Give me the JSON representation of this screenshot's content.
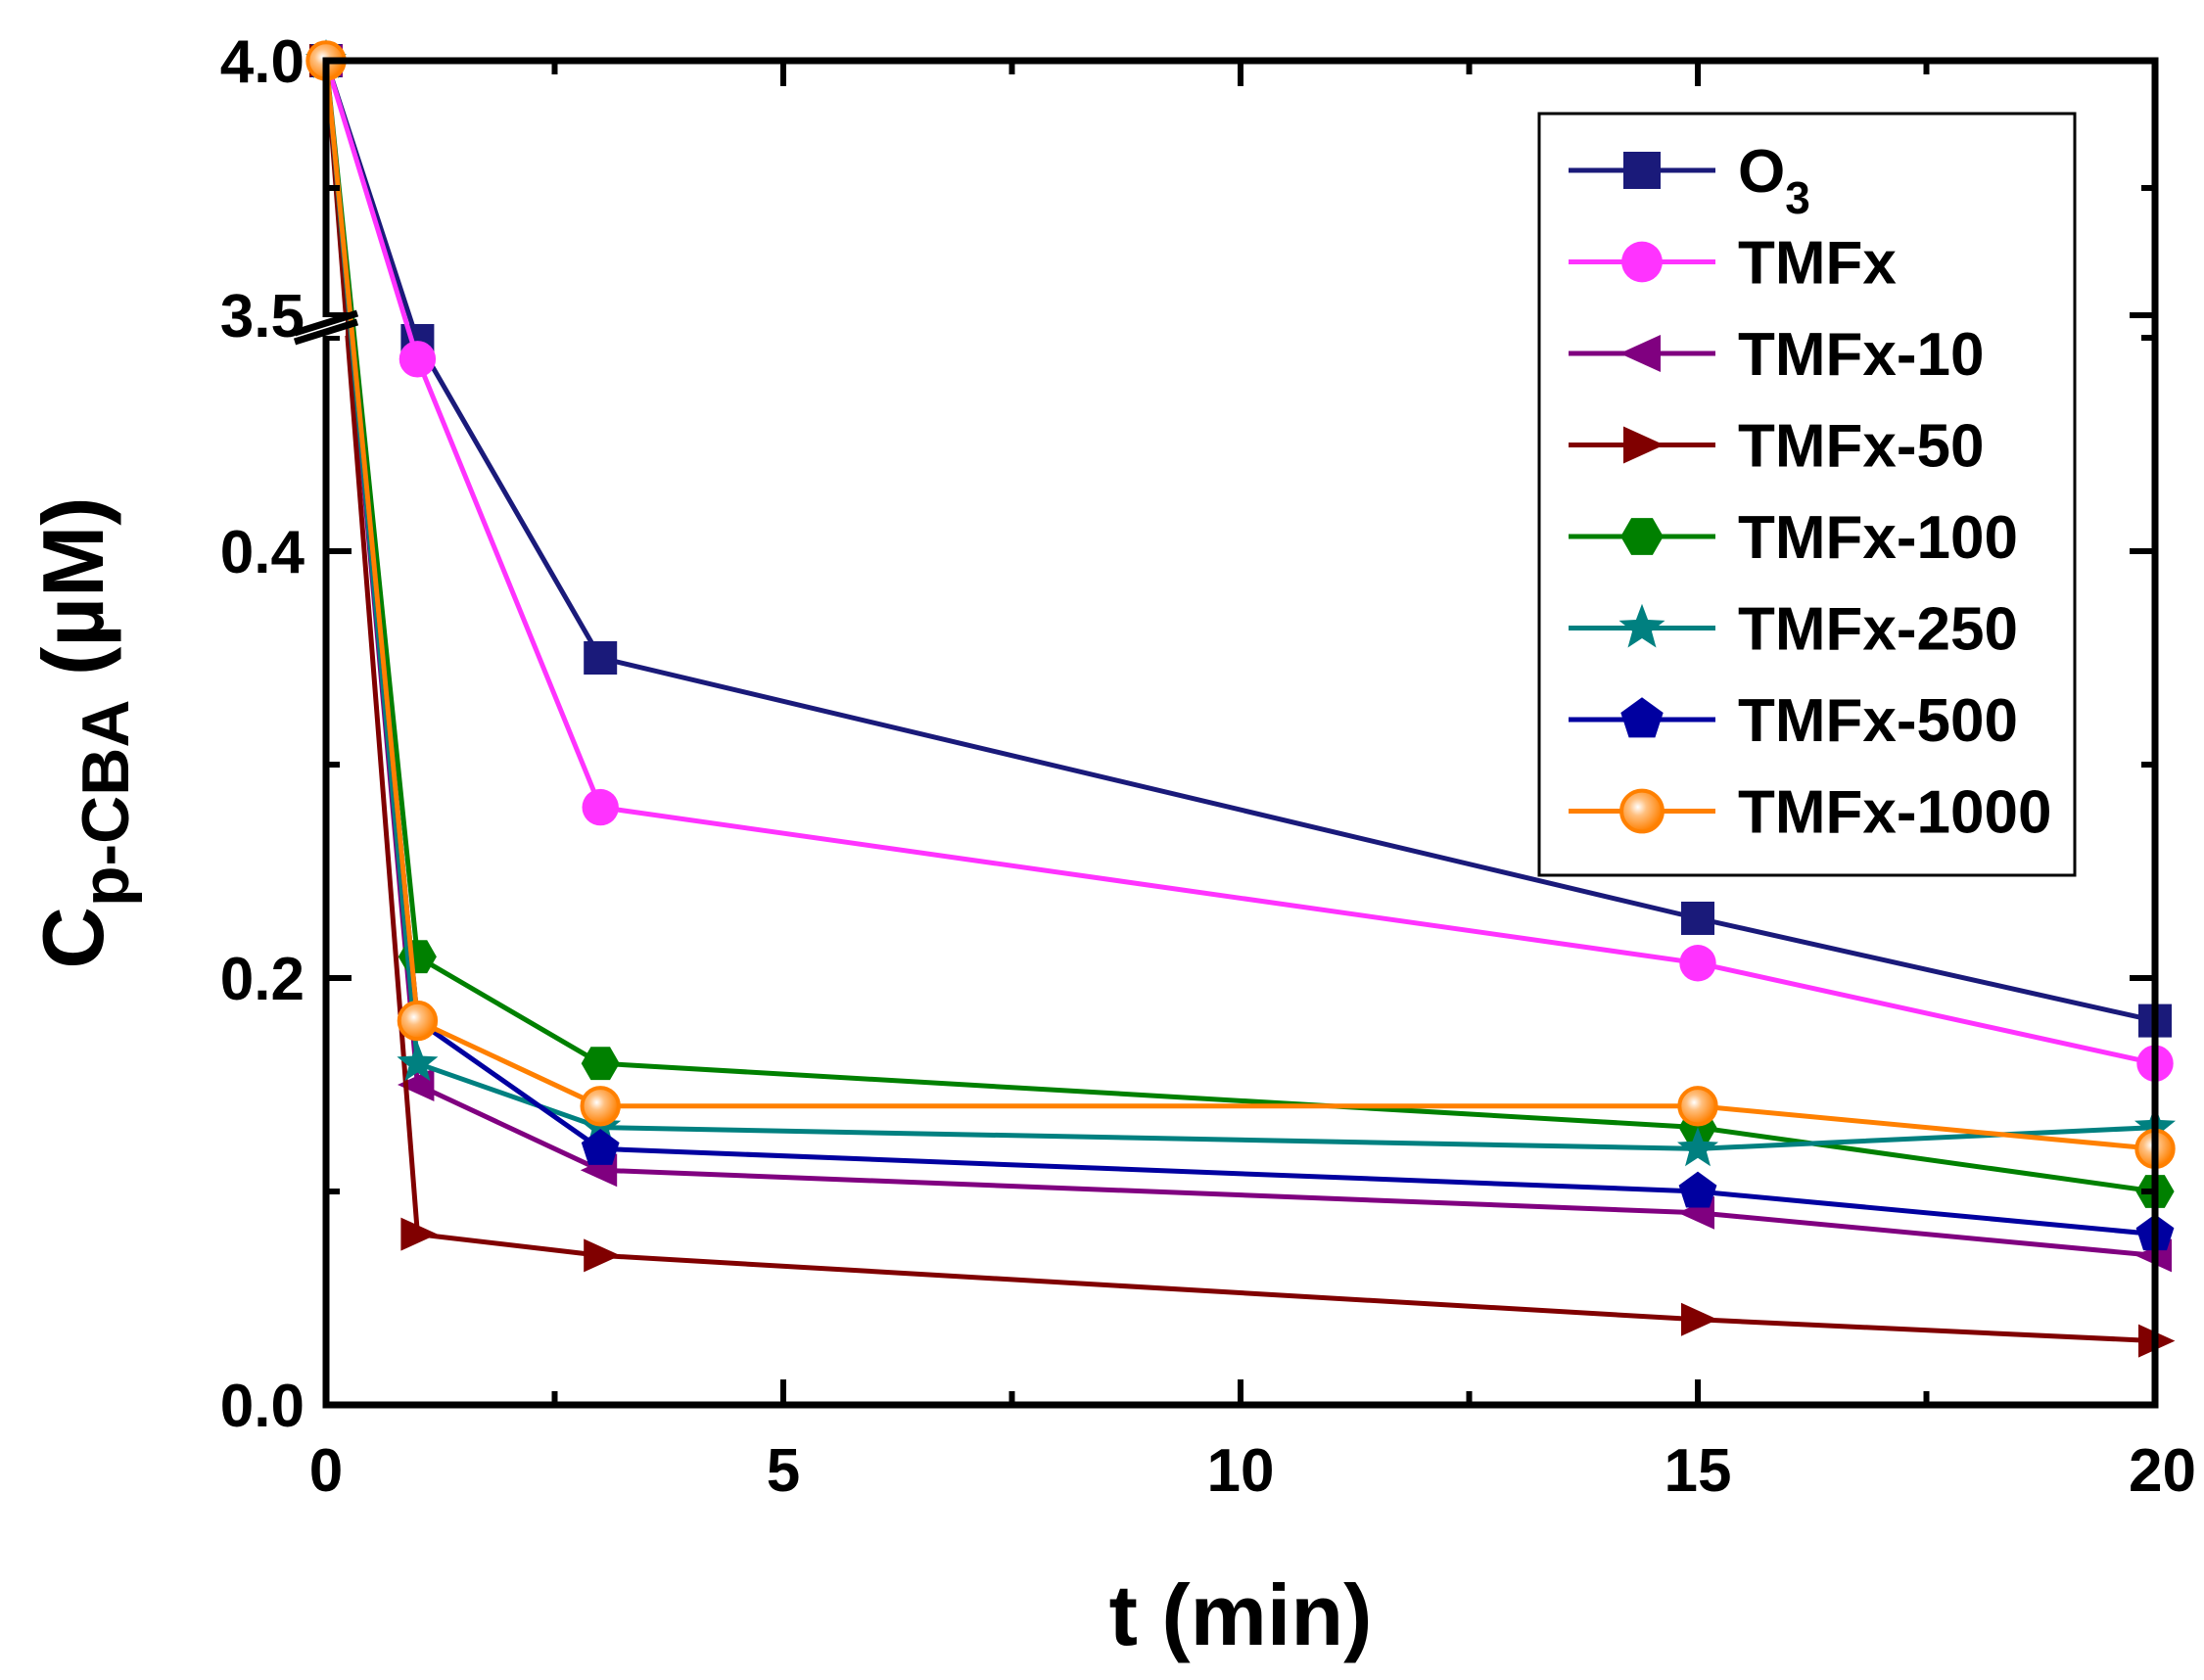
{
  "chart_data": {
    "type": "line",
    "title": "",
    "xlabel": "t (min)",
    "ylabel": {
      "main": "C",
      "sub": "p-CBA",
      "unit": " (µM)"
    },
    "xlim": [
      0,
      20
    ],
    "x_ticks": [
      "0",
      "5",
      "10",
      "15",
      "20"
    ],
    "y_axis_break": {
      "lower_range": [
        0.0,
        0.5
      ],
      "upper_range": [
        3.5,
        4.0
      ]
    },
    "y_ticks": [
      "0.0",
      "0.2",
      "0.4",
      "3.5",
      "4.0"
    ],
    "x": [
      0,
      1,
      3,
      15,
      20
    ],
    "series": [
      {
        "name": "O",
        "name_sub": "3",
        "marker": "square",
        "color": "#1a1a7a",
        "values": [
          4.0,
          3.45,
          0.35,
          0.228,
          0.18
        ]
      },
      {
        "name": "TMFx",
        "name_sub": "",
        "marker": "circle",
        "color": "#ff33ff",
        "values": [
          4.0,
          0.49,
          0.28,
          0.207,
          0.16
        ]
      },
      {
        "name": "TMFx-10",
        "name_sub": "",
        "marker": "triangle-left",
        "color": "#800080",
        "values": [
          4.0,
          0.15,
          0.11,
          0.09,
          0.07
        ]
      },
      {
        "name": "TMFx-50",
        "name_sub": "",
        "marker": "triangle-right",
        "color": "#800000",
        "values": [
          4.0,
          0.08,
          0.07,
          0.04,
          0.03
        ]
      },
      {
        "name": "TMFx-100",
        "name_sub": "",
        "marker": "hexagon",
        "color": "#008000",
        "values": [
          4.0,
          0.21,
          0.16,
          0.13,
          0.1
        ]
      },
      {
        "name": "TMFx-250",
        "name_sub": "",
        "marker": "star",
        "color": "#008080",
        "values": [
          4.0,
          0.16,
          0.13,
          0.12,
          0.13
        ]
      },
      {
        "name": "TMFx-500",
        "name_sub": "",
        "marker": "pentagon",
        "color": "#0000a0",
        "values": [
          4.0,
          0.18,
          0.12,
          0.1,
          0.08
        ]
      },
      {
        "name": "TMFx-1000",
        "name_sub": "",
        "marker": "sphere",
        "color": "#ff8000",
        "values": [
          4.0,
          0.18,
          0.14,
          0.14,
          0.12
        ]
      }
    ],
    "legend_position": "top-right",
    "grid": false
  }
}
